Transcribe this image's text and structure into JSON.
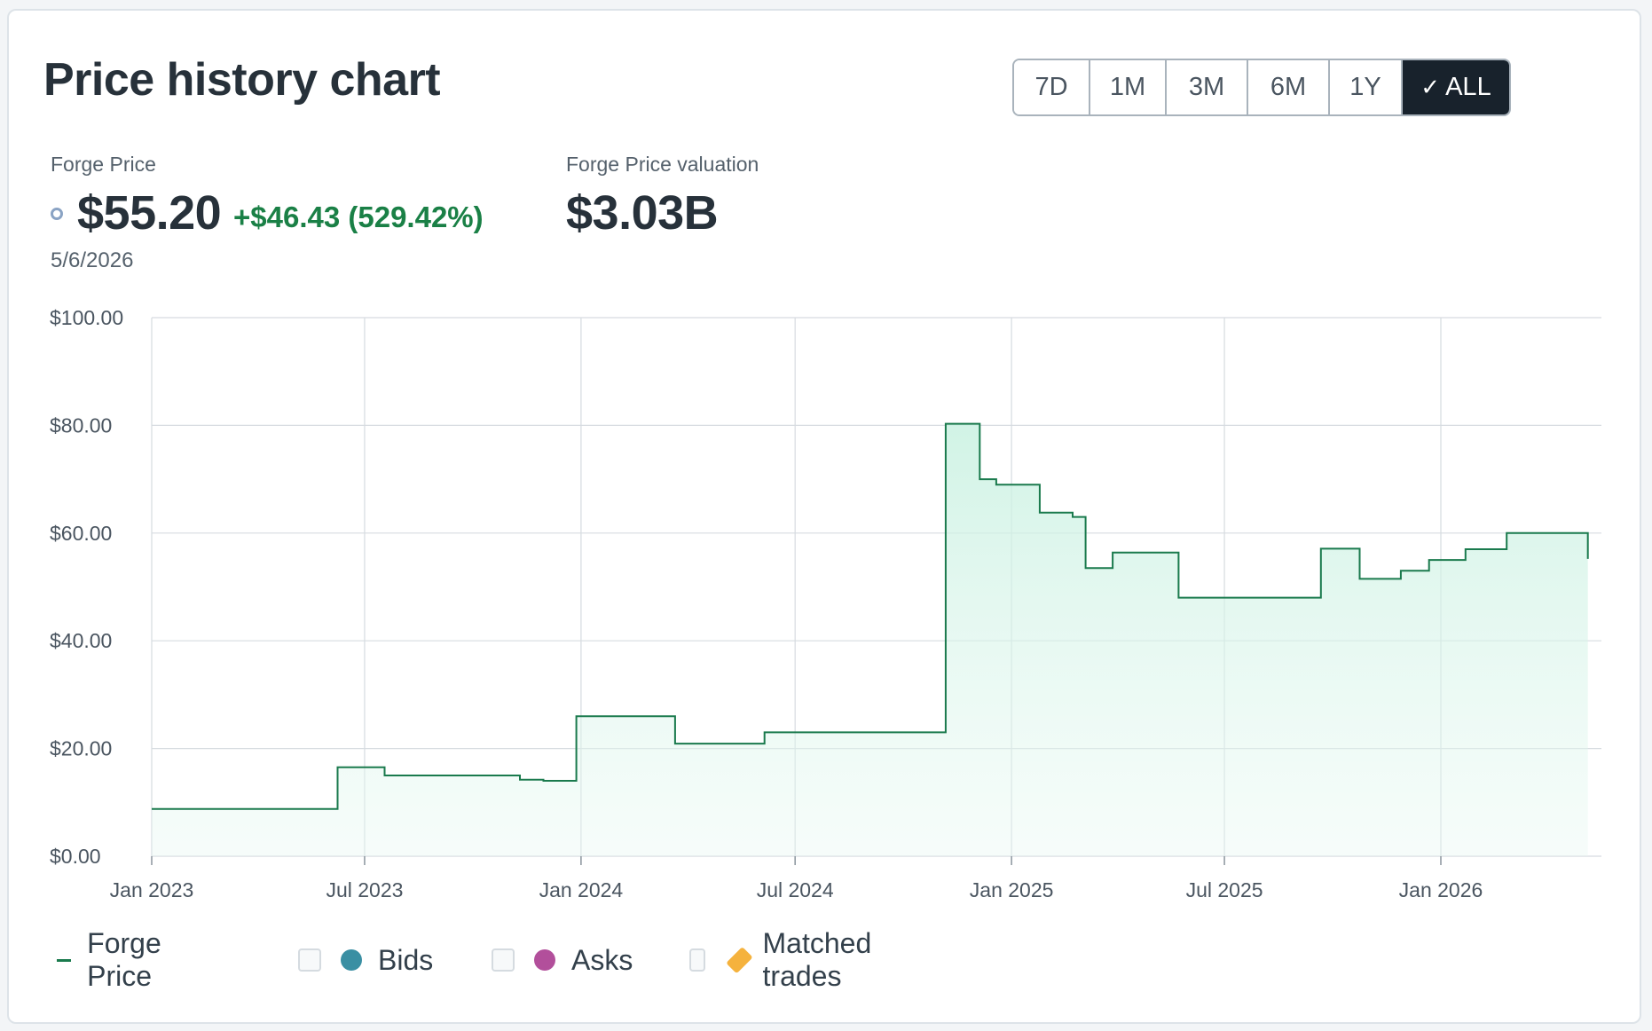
{
  "title": "Price history chart",
  "ranges": [
    {
      "label": "7D",
      "active": false
    },
    {
      "label": "1M",
      "active": false
    },
    {
      "label": "3M",
      "active": false
    },
    {
      "label": "6M",
      "active": false
    },
    {
      "label": "1Y",
      "active": false
    },
    {
      "label": "ALL",
      "active": true
    }
  ],
  "stats": {
    "price_label": "Forge Price",
    "price": "$55.20",
    "change": "+$46.43 (529.42%)",
    "date": "5/6/2026",
    "valuation_label": "Forge Price valuation",
    "valuation": "$3.03B"
  },
  "legend": {
    "forge_price": "Forge Price",
    "bids": "Bids",
    "asks": "Asks",
    "matched": "Matched trades"
  },
  "colors": {
    "line": "#1a7a4d",
    "fill": "#ccf2e3",
    "bids": "#3a8fa3",
    "asks": "#b24f9b",
    "matched": "#f5b23d",
    "positive": "#1a8046"
  },
  "chart_data": {
    "type": "area",
    "step": true,
    "grid": true,
    "y_ticks": [
      "$0.00",
      "$20.00",
      "$40.00",
      "$60.00",
      "$80.00",
      "$100.00"
    ],
    "y_tick_values": [
      0,
      20,
      40,
      60,
      80,
      100
    ],
    "ylim": [
      0,
      100
    ],
    "x_ticks": [
      "Jan 2023",
      "Jul 2023",
      "Jan 2024",
      "Jul 2024",
      "Jan 2025",
      "Jul 2025",
      "Jan 2026"
    ],
    "x_tick_values": [
      "2023-01-01",
      "2023-07-01",
      "2024-01-01",
      "2024-07-01",
      "2025-01-01",
      "2025-07-01",
      "2026-01-01"
    ],
    "series": [
      {
        "name": "Forge Price",
        "x": [
          "2023-01-01",
          "2023-06-08",
          "2023-07-18",
          "2023-11-10",
          "2023-11-30",
          "2023-12-28",
          "2024-03-21",
          "2024-06-05",
          "2024-11-06",
          "2024-12-05",
          "2024-12-19",
          "2025-01-25",
          "2025-02-22",
          "2025-03-05",
          "2025-03-28",
          "2025-05-23",
          "2025-09-21",
          "2025-10-24",
          "2025-11-28",
          "2025-12-22",
          "2026-01-22",
          "2026-02-26",
          "2026-05-06"
        ],
        "y": [
          8.77,
          16.5,
          15.0,
          14.2,
          14.0,
          26.0,
          20.9,
          23.0,
          80.3,
          70.0,
          69.0,
          63.8,
          63.0,
          53.5,
          56.4,
          48.0,
          57.1,
          51.5,
          53.0,
          55.0,
          57.0,
          60.0,
          55.2
        ]
      }
    ]
  }
}
